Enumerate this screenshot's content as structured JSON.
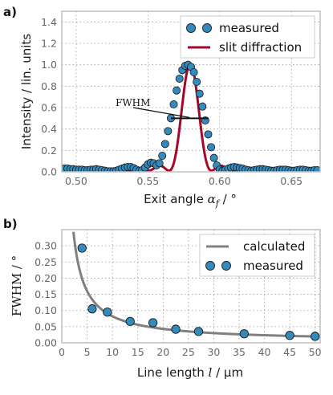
{
  "chart_data": [
    {
      "panel_label": "a)",
      "type": "scatter",
      "xlabel_main": "Exit angle ",
      "xlabel_var": "α",
      "xlabel_sub": "f",
      "xlabel_unit": " / °",
      "ylabel": "Intensity / lin. units",
      "xlim": [
        0.49,
        0.67
      ],
      "ylim": [
        0,
        1.5
      ],
      "xticks": [
        "0.50",
        "0.55",
        "0.60",
        "0.65"
      ],
      "xtick_values": [
        0.5,
        0.55,
        0.6,
        0.65
      ],
      "yticks": [
        "0.0",
        "0.2",
        "0.4",
        "0.6",
        "0.8",
        "1.0",
        "1.2",
        "1.4"
      ],
      "ytick_values": [
        0,
        0.2,
        0.4,
        0.6,
        0.8,
        1.0,
        1.2,
        1.4
      ],
      "grid": true,
      "legend_position": "upper right",
      "annotation": {
        "text": "FWHM",
        "fwhm_left": 0.566,
        "fwhm_right": 0.592,
        "level": 0.5
      },
      "series": [
        {
          "name": "measured",
          "kind": "markers",
          "color": "#348ABD",
          "x": [
            0.49,
            0.492,
            0.494,
            0.496,
            0.498,
            0.5,
            0.502,
            0.504,
            0.506,
            0.508,
            0.51,
            0.512,
            0.514,
            0.516,
            0.518,
            0.52,
            0.522,
            0.524,
            0.526,
            0.528,
            0.53,
            0.532,
            0.534,
            0.536,
            0.538,
            0.54,
            0.542,
            0.544,
            0.546,
            0.548,
            0.55,
            0.552,
            0.554,
            0.556,
            0.558,
            0.56,
            0.562,
            0.564,
            0.566,
            0.568,
            0.57,
            0.572,
            0.574,
            0.576,
            0.578,
            0.58,
            0.582,
            0.584,
            0.586,
            0.588,
            0.59,
            0.592,
            0.594,
            0.596,
            0.598,
            0.6,
            0.602,
            0.604,
            0.606,
            0.608,
            0.61,
            0.612,
            0.614,
            0.616,
            0.618,
            0.62,
            0.622,
            0.624,
            0.626,
            0.628,
            0.63,
            0.632,
            0.634,
            0.636,
            0.638,
            0.64,
            0.642,
            0.644,
            0.646,
            0.648,
            0.65,
            0.652,
            0.654,
            0.656,
            0.658,
            0.66,
            0.662,
            0.664,
            0.666,
            0.668
          ],
          "y": [
            0.03,
            0.03,
            0.03,
            0.025,
            0.025,
            0.02,
            0.02,
            0.02,
            0.015,
            0.015,
            0.02,
            0.02,
            0.025,
            0.02,
            0.015,
            0.01,
            0.005,
            0.005,
            0.005,
            0.01,
            0.02,
            0.03,
            0.04,
            0.045,
            0.045,
            0.035,
            0.02,
            0.01,
            0.015,
            0.04,
            0.07,
            0.085,
            0.08,
            0.06,
            0.08,
            0.15,
            0.26,
            0.38,
            0.5,
            0.63,
            0.76,
            0.87,
            0.95,
            0.99,
            1.0,
            0.98,
            0.93,
            0.84,
            0.73,
            0.61,
            0.48,
            0.35,
            0.23,
            0.13,
            0.06,
            0.02,
            0.01,
            0.02,
            0.03,
            0.04,
            0.045,
            0.04,
            0.035,
            0.03,
            0.02,
            0.015,
            0.01,
            0.015,
            0.02,
            0.025,
            0.025,
            0.02,
            0.015,
            0.01,
            0.01,
            0.015,
            0.02,
            0.02,
            0.02,
            0.015,
            0.01,
            0.01,
            0.015,
            0.02,
            0.02,
            0.015,
            0.01,
            0.01,
            0.015,
            0.015
          ]
        },
        {
          "name": "slit diffraction",
          "kind": "line",
          "color": "#A60628",
          "model": {
            "center": 0.5795,
            "width": 0.0148,
            "amplitude": 1.0,
            "baseline": 0.01
          }
        }
      ]
    },
    {
      "panel_label": "b)",
      "type": "scatter",
      "xlabel_main": "Line length ",
      "xlabel_var": "l",
      "xlabel_unit": " / µm",
      "ylabel": "FWHM / °",
      "xlim": [
        0,
        51
      ],
      "ylim": [
        0,
        0.35
      ],
      "xticks": [
        "0",
        "5",
        "10",
        "15",
        "20",
        "25",
        "30",
        "35",
        "40",
        "45",
        "50"
      ],
      "xtick_values": [
        0,
        5,
        10,
        15,
        20,
        25,
        30,
        35,
        40,
        45,
        50
      ],
      "yticks": [
        "0.00",
        "0.05",
        "0.10",
        "0.15",
        "0.20",
        "0.25",
        "0.30"
      ],
      "ytick_values": [
        0,
        0.05,
        0.1,
        0.15,
        0.2,
        0.25,
        0.3
      ],
      "grid": true,
      "legend_position": "upper right",
      "series": [
        {
          "name": "calculated",
          "kind": "line",
          "color": "#808080",
          "model": {
            "type": "reciprocal",
            "k": 0.78,
            "offset": 0.004,
            "xmin": 2.3
          }
        },
        {
          "name": "measured",
          "kind": "markers",
          "color": "#348ABD",
          "x": [
            4,
            6,
            9,
            13.5,
            18,
            22.5,
            27,
            36,
            45,
            50
          ],
          "y": [
            0.293,
            0.105,
            0.095,
            0.066,
            0.062,
            0.042,
            0.035,
            0.028,
            0.023,
            0.02
          ]
        }
      ]
    }
  ]
}
